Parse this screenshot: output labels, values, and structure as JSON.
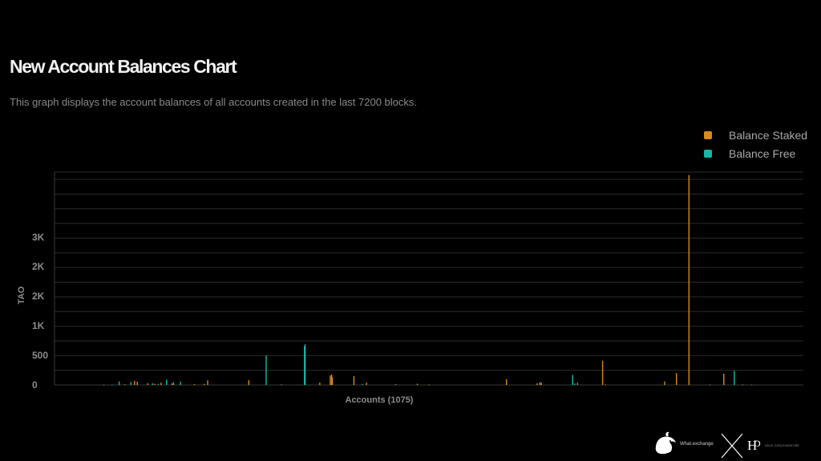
{
  "header": {
    "title": "New Account Balances Chart",
    "subtitle": "This graph displays the account balances of all accounts created in the last 7200 blocks."
  },
  "colors": {
    "staked": "#d98a1b",
    "free": "#13b9a5",
    "grid": "#2b2b2b",
    "axis_text": "#8c8c8c"
  },
  "footer": {
    "brand_left": "What.exchange",
    "brand_right": "HOLD COIN EVENTURE",
    "separator_icon": "x-cross-icon",
    "left_logo_icon": "whale-logo-icon",
    "right_logo_icon": "hd-monogram-icon"
  },
  "chart_data": {
    "type": "bar",
    "title": "New Account Balances Chart",
    "xlabel": "Accounts (1075)",
    "ylabel": "TAO",
    "ytick_labels": [
      "0",
      "500",
      "1K",
      "2K",
      "2K",
      "3K"
    ],
    "ylim": [
      0,
      3600
    ],
    "ytick_values": [
      0,
      500,
      1000,
      1500,
      2000,
      2500
    ],
    "grid": true,
    "legend_position": "top-right",
    "x_domain": [
      0,
      1075
    ],
    "series": [
      {
        "name": "Balance Staked",
        "color": "#d98a1b",
        "points": [
          [
            70,
            5
          ],
          [
            100,
            12
          ],
          [
            114,
            70
          ],
          [
            118,
            55
          ],
          [
            133,
            30
          ],
          [
            143,
            20
          ],
          [
            152,
            38
          ],
          [
            168,
            26
          ],
          [
            200,
            15
          ],
          [
            214,
            18
          ],
          [
            219,
            78
          ],
          [
            278,
            80
          ],
          [
            325,
            10
          ],
          [
            358,
            28
          ],
          [
            380,
            40
          ],
          [
            395,
            160
          ],
          [
            397,
            175
          ],
          [
            398,
            130
          ],
          [
            429,
            150
          ],
          [
            447,
            40
          ],
          [
            489,
            12
          ],
          [
            520,
            20
          ],
          [
            537,
            8
          ],
          [
            648,
            95
          ],
          [
            692,
            30
          ],
          [
            696,
            45
          ],
          [
            698,
            38
          ],
          [
            786,
            410
          ],
          [
            790,
            8
          ],
          [
            875,
            60
          ],
          [
            892,
            200
          ],
          [
            910,
            3550
          ],
          [
            940,
            8
          ],
          [
            960,
            190
          ],
          [
            987,
            10
          ]
        ]
      },
      {
        "name": "Balance Free",
        "color": "#13b9a5",
        "points": [
          [
            82,
            4
          ],
          [
            92,
            60
          ],
          [
            109,
            50
          ],
          [
            140,
            28
          ],
          [
            148,
            18
          ],
          [
            160,
            90
          ],
          [
            170,
            45
          ],
          [
            180,
            55
          ],
          [
            303,
            500
          ],
          [
            358,
            660
          ],
          [
            359,
            690
          ],
          [
            441,
            15
          ],
          [
            743,
            170
          ],
          [
            746,
            25
          ],
          [
            750,
            40
          ],
          [
            975,
            240
          ],
          [
            1000,
            8
          ]
        ]
      }
    ]
  }
}
